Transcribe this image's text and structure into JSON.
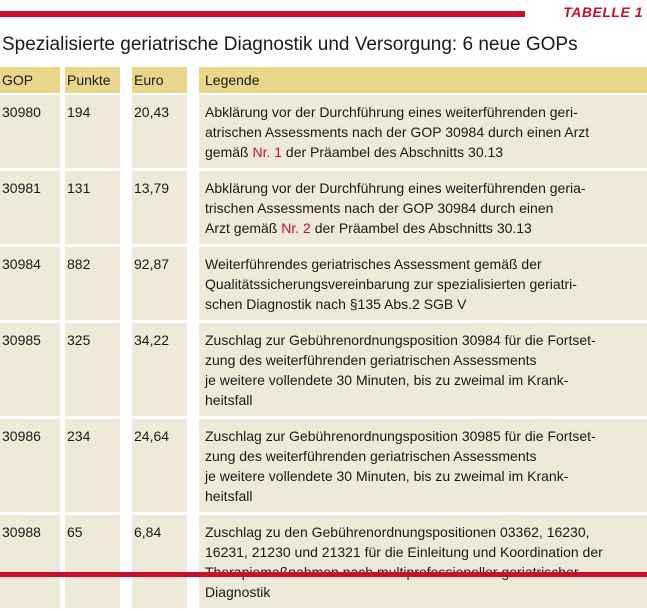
{
  "header": {
    "tabelle_label": "TABELLE 1"
  },
  "title": "Spezialisierte geriatrische Diagnostik und Versorgung: 6 neue GOPs",
  "table": {
    "columns": [
      "GOP",
      "Punkte",
      "Euro",
      "Legende"
    ],
    "rows": [
      {
        "gop": "30980",
        "punkte": "194",
        "euro": "20,43",
        "legende_parts": [
          "Abklärung vor der Durchführung eines weiterführenden geri-",
          "atrischen Assessments nach der GOP 30984 durch einen Arzt",
          "gemäß ",
          "Nr. 1",
          " der Präambel des Abschnitts 30.13"
        ]
      },
      {
        "gop": "30981",
        "punkte": "131",
        "euro": "13,79",
        "legende_parts": [
          "Abklärung vor der Durchführung eines weiterführenden geria-",
          "trischen Assessments nach der GOP 30984 durch einen",
          "Arzt gemäß ",
          "Nr. 2",
          " der Präambel des Abschnitts 30.13"
        ]
      },
      {
        "gop": "30984",
        "punkte": "882",
        "euro": "92,87",
        "legende_lines": [
          "Weiterführendes geriatrisches Assessment gemäß der",
          "Qualitätssicherungsvereinbarung zur spezialisierten geriatri-",
          "schen Diagnostik nach §135 Abs.2 SGB V"
        ]
      },
      {
        "gop": "30985",
        "punkte": "325",
        "euro": "34,22",
        "legende_lines": [
          "Zuschlag zur Gebührenordnungsposition 30984 für die Fortset-",
          "zung des weiterführenden geriatrischen Assessments",
          "je weitere vollendete 30 Minuten, bis zu zweimal im Krank-",
          "heitsfall"
        ]
      },
      {
        "gop": "30986",
        "punkte": "234",
        "euro": "24,64",
        "legende_lines": [
          "Zuschlag zur Gebührenordnungsposition 30985 für die Fortset-",
          "zung des weiterführenden geriatrischen Assessments",
          "je weitere vollendete 30 Minuten, bis zu zweimal im Krank-",
          "heitsfall"
        ]
      },
      {
        "gop": "30988",
        "punkte": "65",
        "euro": "6,84",
        "legende_lines": [
          "Zuschlag zu den Gebührenordnungspositionen 03362, 16230,",
          "16231, 21230 und 21321 für die Einleitung und Koordination der",
          "Therapiemaßnahmen nach multiprofessioneller geriatrischer",
          "Diagnostik"
        ]
      }
    ]
  },
  "colors": {
    "accent": "#c8102e",
    "header_bg": "#e9d68a",
    "row_bg": "#efe9d9"
  }
}
